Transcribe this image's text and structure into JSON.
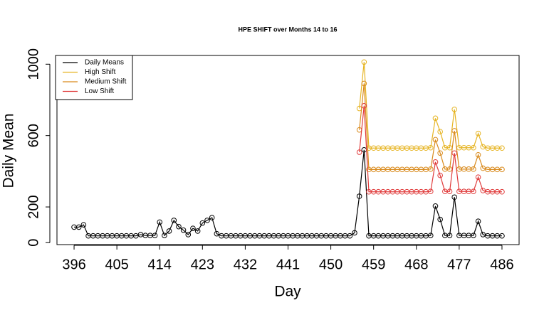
{
  "chart_data": {
    "type": "line",
    "title": "HPE SHIFT over Months 14 to 16",
    "x_label": "Day",
    "y_label": "Daily Mean",
    "x": [
      396,
      397,
      398,
      399,
      400,
      401,
      402,
      403,
      404,
      405,
      406,
      407,
      408,
      409,
      410,
      411,
      412,
      413,
      414,
      415,
      416,
      417,
      418,
      419,
      420,
      421,
      422,
      423,
      424,
      425,
      426,
      427,
      428,
      429,
      430,
      431,
      432,
      433,
      434,
      435,
      436,
      437,
      438,
      439,
      440,
      441,
      442,
      443,
      444,
      445,
      446,
      447,
      448,
      449,
      450,
      451,
      452,
      453,
      454,
      455,
      456,
      457,
      458,
      459,
      460,
      461,
      462,
      463,
      464,
      465,
      466,
      467,
      468,
      469,
      470,
      471,
      472,
      473,
      474,
      475,
      476,
      477,
      478,
      479,
      480,
      481,
      482,
      483,
      484,
      485,
      486
    ],
    "series": [
      {
        "name": "Daily Means",
        "color": "#000000",
        "values": [
          87,
          87,
          100,
          38,
          38,
          38,
          38,
          38,
          38,
          38,
          38,
          38,
          38,
          38,
          45,
          40,
          40,
          40,
          115,
          40,
          65,
          125,
          90,
          70,
          45,
          80,
          65,
          110,
          125,
          140,
          50,
          38,
          38,
          38,
          38,
          38,
          38,
          38,
          38,
          38,
          38,
          38,
          38,
          38,
          38,
          38,
          38,
          38,
          38,
          38,
          38,
          38,
          38,
          38,
          38,
          38,
          38,
          38,
          38,
          55,
          260,
          520,
          38,
          38,
          38,
          38,
          38,
          38,
          38,
          38,
          38,
          38,
          38,
          38,
          38,
          40,
          205,
          130,
          40,
          40,
          255,
          40,
          40,
          40,
          40,
          120,
          45,
          38,
          38,
          38,
          38
        ]
      },
      {
        "name": "High Shift",
        "color": "#e6b422",
        "values": [
          null,
          null,
          null,
          null,
          null,
          null,
          null,
          null,
          null,
          null,
          null,
          null,
          null,
          null,
          null,
          null,
          null,
          null,
          null,
          null,
          null,
          null,
          null,
          null,
          null,
          null,
          null,
          null,
          null,
          null,
          null,
          null,
          null,
          null,
          null,
          null,
          null,
          null,
          null,
          null,
          null,
          null,
          null,
          null,
          null,
          null,
          null,
          null,
          null,
          null,
          null,
          null,
          null,
          null,
          null,
          null,
          null,
          null,
          null,
          null,
          752,
          1012,
          530,
          530,
          530,
          530,
          530,
          530,
          530,
          530,
          530,
          530,
          530,
          530,
          530,
          532,
          697,
          622,
          532,
          532,
          747,
          532,
          532,
          532,
          532,
          612,
          537,
          530,
          530,
          530,
          530
        ]
      },
      {
        "name": "Medium Shift",
        "color": "#d98a1c",
        "values": [
          null,
          null,
          null,
          null,
          null,
          null,
          null,
          null,
          null,
          null,
          null,
          null,
          null,
          null,
          null,
          null,
          null,
          null,
          null,
          null,
          null,
          null,
          null,
          null,
          null,
          null,
          null,
          null,
          null,
          null,
          null,
          null,
          null,
          null,
          null,
          null,
          null,
          null,
          null,
          null,
          null,
          null,
          null,
          null,
          null,
          null,
          null,
          null,
          null,
          null,
          null,
          null,
          null,
          null,
          null,
          null,
          null,
          null,
          null,
          null,
          632,
          892,
          410,
          410,
          410,
          410,
          410,
          410,
          410,
          410,
          410,
          410,
          410,
          410,
          410,
          412,
          577,
          502,
          412,
          412,
          627,
          412,
          412,
          412,
          412,
          492,
          417,
          410,
          410,
          410,
          410
        ]
      },
      {
        "name": "Low Shift",
        "color": "#e03b3b",
        "values": [
          null,
          null,
          null,
          null,
          null,
          null,
          null,
          null,
          null,
          null,
          null,
          null,
          null,
          null,
          null,
          null,
          null,
          null,
          null,
          null,
          null,
          null,
          null,
          null,
          null,
          null,
          null,
          null,
          null,
          null,
          null,
          null,
          null,
          null,
          null,
          null,
          null,
          null,
          null,
          null,
          null,
          null,
          null,
          null,
          null,
          null,
          null,
          null,
          null,
          null,
          null,
          null,
          null,
          null,
          null,
          null,
          null,
          null,
          null,
          null,
          507,
          767,
          285,
          285,
          285,
          285,
          285,
          285,
          285,
          285,
          285,
          285,
          285,
          285,
          285,
          287,
          452,
          377,
          287,
          287,
          502,
          287,
          287,
          287,
          287,
          367,
          292,
          285,
          285,
          285,
          285
        ]
      }
    ],
    "xlim": [
      392.4,
      489.6
    ],
    "xticks": [
      396,
      405,
      414,
      423,
      432,
      441,
      450,
      459,
      468,
      477,
      486
    ],
    "ylim": [
      -11,
      1049
    ],
    "yticks": [
      0,
      200,
      600,
      1000
    ],
    "legend": "top-left"
  }
}
